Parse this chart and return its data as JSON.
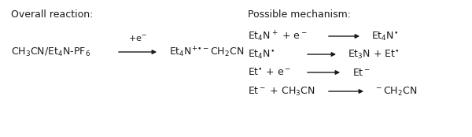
{
  "bg_color": "#ffffff",
  "fig_width": 6.0,
  "fig_height": 1.74,
  "dpi": 100,
  "overall_label": "Overall reaction:",
  "mechanism_label": "Possible mechanism:",
  "reactant_text": "CH$_3$CN/Et$_4$N-PF$_6$",
  "above_arrow_text": "+e$^{-}$",
  "product_text": "Et$_4$N$^{+{\\bullet}-}$CH$_2$CN",
  "mech_lines": [
    {
      "left": "Et$_4$N$^+$ + e$^-$",
      "right": "Et$_4$N$^{\\bullet}$"
    },
    {
      "left": "Et$_4$N$^{\\bullet}$",
      "right": "Et$_3$N + Et$^{\\bullet}$"
    },
    {
      "left": "Et$^{\\bullet}$ + e$^-$",
      "right": "Et$^-$"
    },
    {
      "left": "Et$^-$ + CH$_3$CN",
      "right": "$^-$CH$_2$CN"
    }
  ],
  "font_size": 9,
  "font_family": "DejaVu Sans",
  "arrow_color": "#1a1a1a",
  "text_color": "#1a1a1a"
}
